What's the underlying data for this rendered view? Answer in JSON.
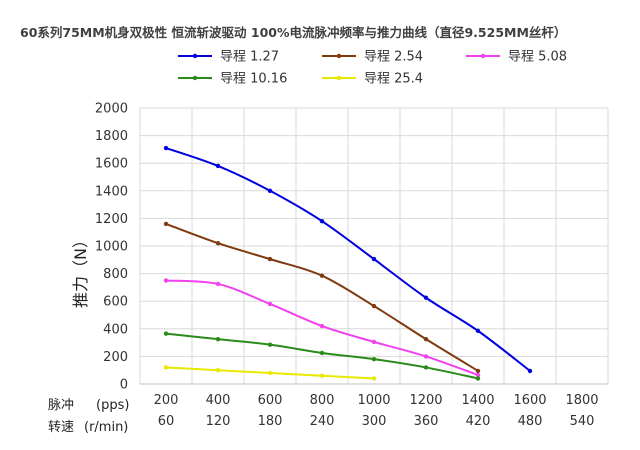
{
  "chart_data": {
    "type": "line",
    "title": "60系列75MM机身双极性 恒流斩波驱动 100%电流脉冲频率与推力曲线（直径9.525MM丝杆）",
    "ylabel": "推力（N）",
    "ylim": [
      0,
      2000
    ],
    "yticks": [
      0,
      200,
      400,
      600,
      800,
      1000,
      1200,
      1400,
      1600,
      1800,
      2000
    ],
    "x_pps": [
      200,
      400,
      600,
      800,
      1000,
      1200,
      1400,
      1600,
      1800
    ],
    "x_rpm": [
      60,
      120,
      180,
      240,
      300,
      360,
      420,
      480,
      540
    ],
    "x_row1_label": "脉冲",
    "x_row1_unit": "(pps)",
    "x_row2_label": "转速",
    "x_row2_unit": "(r/min)",
    "grid": true,
    "legend_position": "top",
    "series": [
      {
        "name": "导程 1.27",
        "color": "#0000e0",
        "x": [
          200,
          400,
          600,
          800,
          1000,
          1200,
          1400,
          1600
        ],
        "values": [
          1710,
          1580,
          1400,
          1180,
          905,
          625,
          385,
          95
        ]
      },
      {
        "name": "导程 2.54",
        "color": "#7f3a10",
        "x": [
          200,
          400,
          600,
          800,
          1000,
          1200,
          1400
        ],
        "values": [
          1160,
          1020,
          905,
          785,
          565,
          325,
          95
        ]
      },
      {
        "name": "导程   5.08",
        "color": "#f040f0",
        "x": [
          200,
          400,
          600,
          800,
          1000,
          1200,
          1400
        ],
        "values": [
          750,
          725,
          580,
          420,
          305,
          200,
          65
        ]
      },
      {
        "name": "导程   10.16",
        "color": "#2a8a1a",
        "x": [
          200,
          400,
          600,
          800,
          1000,
          1200,
          1400
        ],
        "values": [
          365,
          325,
          285,
          225,
          180,
          120,
          40
        ]
      },
      {
        "name": "导程   25.4",
        "color": "#e8e800",
        "x": [
          200,
          400,
          600,
          800,
          1000
        ],
        "values": [
          120,
          100,
          80,
          60,
          40
        ]
      }
    ]
  }
}
